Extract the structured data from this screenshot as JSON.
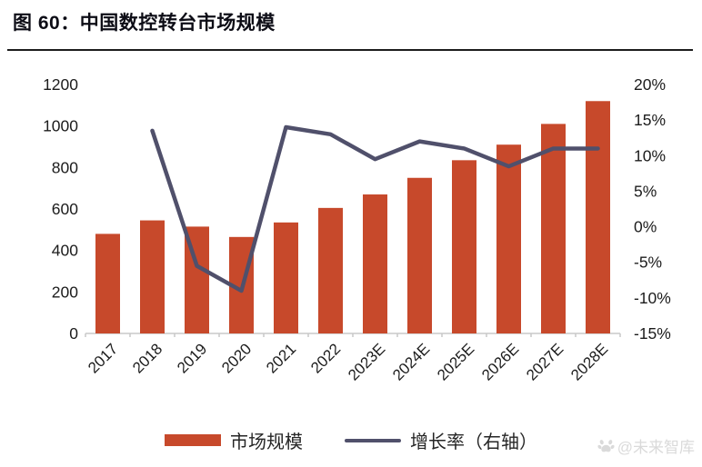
{
  "figure": {
    "title": "图 60：中国数控转台市场规模",
    "watermark": "@未来智库"
  },
  "chart_data": {
    "type": "bar",
    "subtype": "bar-line-combo",
    "title": "中国数控转台市场规模",
    "categories": [
      "2017",
      "2018",
      "2019",
      "2020",
      "2021",
      "2022",
      "2023E",
      "2024E",
      "2025E",
      "2026E",
      "2027E",
      "2028E"
    ],
    "series": [
      {
        "name": "市场规模",
        "type": "bar",
        "axis": "left",
        "color": "#c7492b",
        "values": [
          480,
          545,
          515,
          465,
          535,
          605,
          670,
          750,
          835,
          910,
          1010,
          1120
        ]
      },
      {
        "name": "增长率（右轴）",
        "type": "line",
        "axis": "right",
        "color": "#50506b",
        "values": [
          null,
          13.5,
          -5.5,
          -9,
          14,
          13,
          9.5,
          12,
          11,
          8.5,
          11,
          11
        ]
      }
    ],
    "left_axis": {
      "min": 0,
      "max": 1200,
      "step": 200,
      "tick_labels": [
        "0",
        "200",
        "400",
        "600",
        "800",
        "1000",
        "1200"
      ]
    },
    "right_axis": {
      "min": -15,
      "max": 20,
      "step": 5,
      "tick_labels": [
        "-15%",
        "-10%",
        "-5%",
        "0%",
        "5%",
        "10%",
        "15%",
        "20%"
      ]
    },
    "grid": "off",
    "legend_position": "bottom",
    "axis_line_color": "#c9c9c9",
    "tick_text_color": "#1c1c1c"
  }
}
